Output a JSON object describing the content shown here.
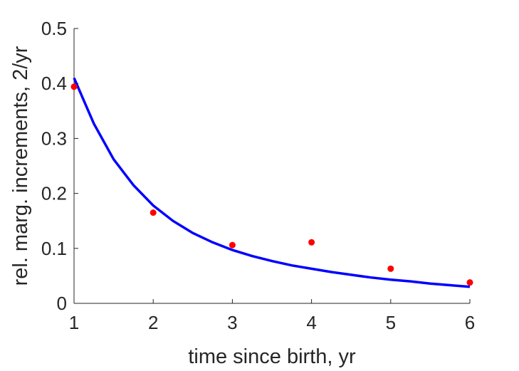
{
  "chart_data": {
    "type": "scatter",
    "title": "",
    "xlabel": "time since birth, yr",
    "ylabel": "rel. marg. increments, 2/yr",
    "xlim": [
      1,
      6
    ],
    "ylim": [
      0,
      0.5
    ],
    "xticks": [
      1,
      2,
      3,
      4,
      5,
      6
    ],
    "yticks": [
      0,
      0.1,
      0.2,
      0.3,
      0.4,
      0.5
    ],
    "xtick_labels": [
      "1",
      "2",
      "3",
      "4",
      "5",
      "6"
    ],
    "ytick_labels": [
      "0",
      "0.1",
      "0.2",
      "0.3",
      "0.4",
      "0.5"
    ],
    "grid": false,
    "legend": "none",
    "series": [
      {
        "kind": "line",
        "color": "#0000ff",
        "x": [
          1,
          1.25,
          1.5,
          1.75,
          2,
          2.25,
          2.5,
          2.75,
          3,
          3.25,
          3.5,
          3.75,
          4,
          4.25,
          4.5,
          4.75,
          5,
          5.25,
          5.5,
          5.75,
          6
        ],
        "y": [
          0.41,
          0.327,
          0.262,
          0.215,
          0.178,
          0.15,
          0.128,
          0.111,
          0.097,
          0.086,
          0.077,
          0.069,
          0.063,
          0.057,
          0.052,
          0.047,
          0.043,
          0.04,
          0.036,
          0.033,
          0.03
        ]
      },
      {
        "kind": "scatter",
        "color": "#ff0000",
        "x": [
          1,
          2,
          3,
          4,
          5,
          6
        ],
        "y": [
          0.394,
          0.165,
          0.106,
          0.111,
          0.063,
          0.038
        ]
      }
    ]
  }
}
